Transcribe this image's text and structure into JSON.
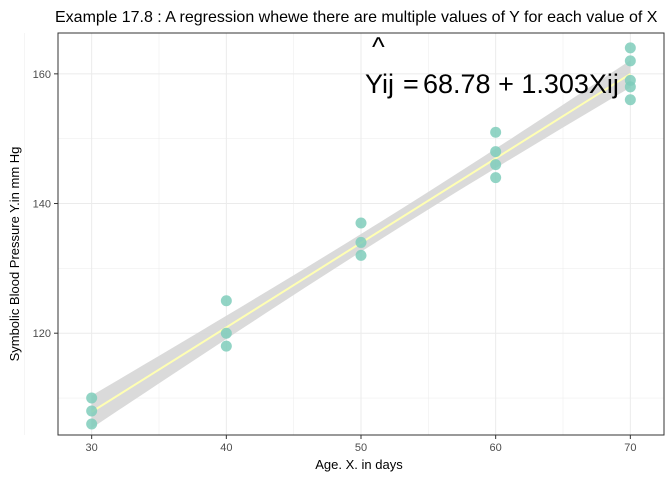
{
  "chart_data": {
    "type": "scatter",
    "title": "Example 17.8 : A regression whewe there are multiple values of Y for each value of X",
    "xlabel": "Age. X. in days",
    "ylabel": "Symbolic Blood Pressure Y.in mm Hg",
    "xlim": [
      27.5,
      72.5
    ],
    "ylim": [
      104.3,
      166.3
    ],
    "x_ticks": [
      30,
      40,
      50,
      60,
      70
    ],
    "y_ticks": [
      120,
      140,
      160
    ],
    "grid": true,
    "points": [
      {
        "x": 30,
        "y": 106
      },
      {
        "x": 30,
        "y": 108
      },
      {
        "x": 30,
        "y": 110
      },
      {
        "x": 40,
        "y": 118
      },
      {
        "x": 40,
        "y": 120
      },
      {
        "x": 40,
        "y": 125
      },
      {
        "x": 50,
        "y": 132
      },
      {
        "x": 50,
        "y": 134
      },
      {
        "x": 50,
        "y": 137
      },
      {
        "x": 60,
        "y": 144
      },
      {
        "x": 60,
        "y": 146
      },
      {
        "x": 60,
        "y": 148
      },
      {
        "x": 60,
        "y": 151
      },
      {
        "x": 70,
        "y": 156
      },
      {
        "x": 70,
        "y": 158
      },
      {
        "x": 70,
        "y": 159
      },
      {
        "x": 70,
        "y": 162
      },
      {
        "x": 70,
        "y": 164
      }
    ],
    "regression": {
      "intercept": 68.78,
      "slope": 1.303
    },
    "equation": {
      "lhs": "Yij",
      "hat": "^",
      "equals": "=",
      "rhs": "68.78 + 1.303Xij"
    },
    "colors": {
      "points": "#7fcdbb",
      "line": "#ffffb3",
      "band": "#d3d3d3",
      "grid": "#ebebeb",
      "border": "#333333"
    }
  }
}
